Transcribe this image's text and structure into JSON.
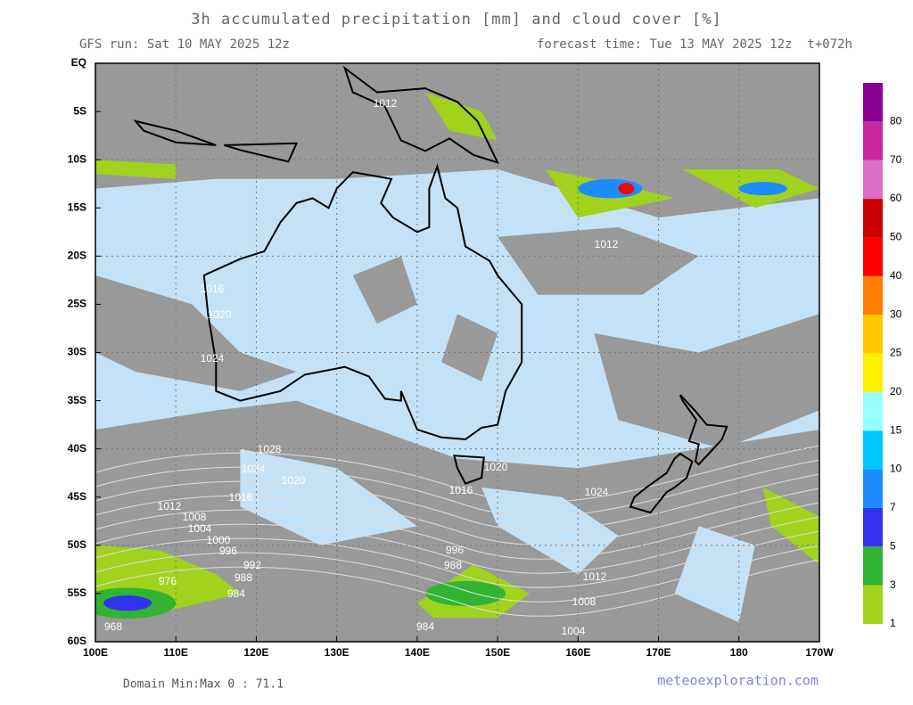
{
  "header": {
    "title": "3h accumulated precipitation [mm] and cloud cover [%]",
    "gfs_run": "GFS run: Sat 10 MAY 2025 12z",
    "forecast_time": "forecast time: Tue 13 MAY 2025 12z  t+072h"
  },
  "axes": {
    "lat_labels": [
      "EQ",
      "5S",
      "10S",
      "15S",
      "20S",
      "25S",
      "30S",
      "35S",
      "40S",
      "45S",
      "50S",
      "55S",
      "60S"
    ],
    "lon_labels": [
      "100E",
      "110E",
      "120E",
      "130E",
      "140E",
      "150E",
      "160E",
      "170E",
      "180",
      "170W"
    ]
  },
  "colorbar": {
    "labels": [
      1,
      3,
      5,
      7,
      10,
      15,
      20,
      25,
      30,
      40,
      50,
      60,
      70,
      80
    ],
    "colors": [
      "#a0d21e",
      "#32b432",
      "#3232f0",
      "#1e8cff",
      "#00c8ff",
      "#96ffff",
      "#fff000",
      "#ffc800",
      "#ff7d00",
      "#ff0000",
      "#c80000",
      "#dc6ec8",
      "#c8289b",
      "#8c0096"
    ]
  },
  "isobar_labels": [
    1024,
    1020,
    1016,
    1028,
    1024,
    1020,
    1016,
    1012,
    1008,
    1004,
    1000,
    996,
    992,
    988,
    984,
    976,
    968,
    996,
    988,
    984,
    1012,
    1008,
    1004,
    1024,
    1016,
    1020,
    1012,
    1012
  ],
  "footer": {
    "domain": "Domain Min:Max 0 : 71.1",
    "site": "meteoexploration.com"
  }
}
